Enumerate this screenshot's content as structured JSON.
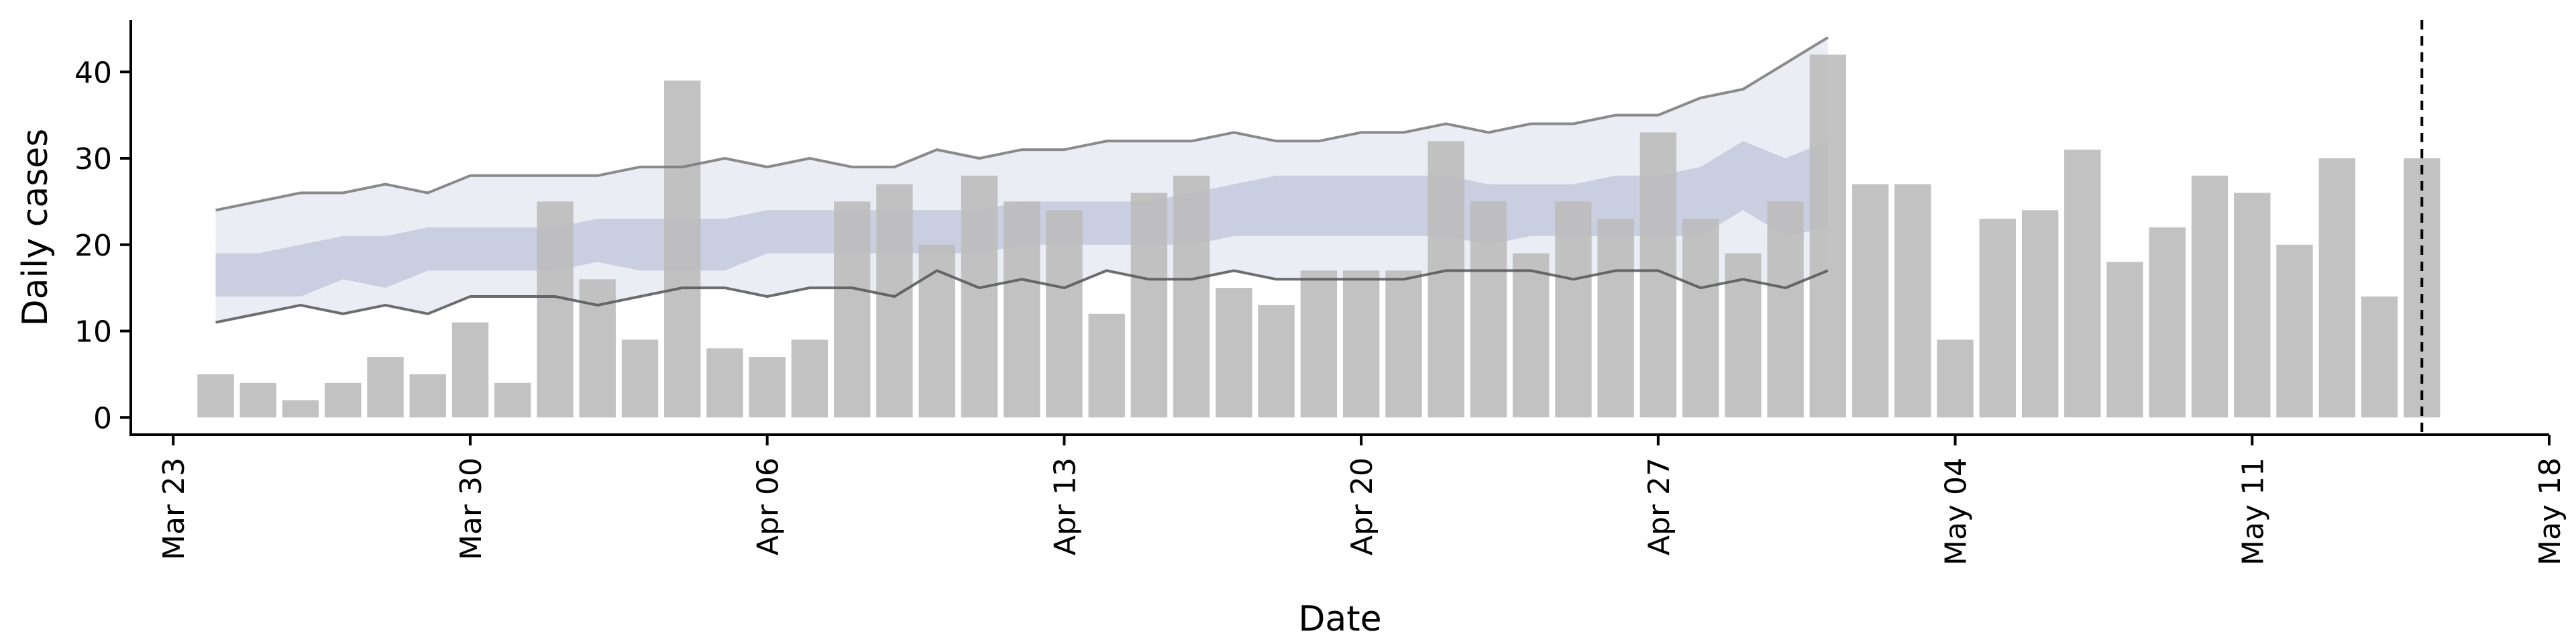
{
  "chart_data": {
    "type": "bar",
    "xlabel": "Date",
    "ylabel": "Daily cases",
    "ylim": [
      -2,
      46
    ],
    "xlim": [
      "2020-03-22",
      "2020-05-18"
    ],
    "grid": false,
    "yticks": [
      0,
      10,
      20,
      30,
      40
    ],
    "xticks": [
      {
        "date": "2020-03-23",
        "label": "Mar 23"
      },
      {
        "date": "2020-03-30",
        "label": "Mar 30"
      },
      {
        "date": "2020-04-06",
        "label": "Apr 06"
      },
      {
        "date": "2020-04-13",
        "label": "Apr 13"
      },
      {
        "date": "2020-04-20",
        "label": "Apr 20"
      },
      {
        "date": "2020-04-27",
        "label": "Apr 27"
      },
      {
        "date": "2020-05-04",
        "label": "May 04"
      },
      {
        "date": "2020-05-11",
        "label": "May 11"
      },
      {
        "date": "2020-05-18",
        "label": "May 18"
      }
    ],
    "bars": {
      "start_date": "2020-03-24",
      "color": "#bdbdbd",
      "values": [
        5,
        4,
        2,
        4,
        7,
        5,
        11,
        4,
        25,
        16,
        9,
        39,
        8,
        7,
        9,
        25,
        27,
        20,
        28,
        25,
        24,
        12,
        26,
        28,
        15,
        13,
        17,
        17,
        17,
        32,
        25,
        19,
        25,
        23,
        33,
        23,
        19,
        25,
        42,
        27,
        27,
        9,
        23,
        24,
        31,
        18,
        22,
        28,
        26,
        20,
        30,
        14,
        30
      ]
    },
    "forecast": {
      "start_date": "2020-03-24",
      "outer_color": "#e8eaf2",
      "inner_color": "#c5cbde",
      "line_color": "#777777",
      "outer_upper": [
        24,
        25,
        26,
        26,
        27,
        26,
        28,
        28,
        28,
        28,
        29,
        29,
        30,
        29,
        30,
        29,
        29,
        31,
        30,
        31,
        31,
        32,
        32,
        32,
        33,
        32,
        32,
        33,
        33,
        34,
        33,
        34,
        34,
        35,
        35,
        37,
        38,
        41,
        44
      ],
      "inner_upper": [
        19,
        19,
        20,
        21,
        21,
        22,
        22,
        22,
        22,
        23,
        23,
        23,
        23,
        24,
        24,
        24,
        24,
        24,
        24,
        25,
        25,
        25,
        25,
        26,
        27,
        28,
        28,
        28,
        28,
        28,
        27,
        27,
        27,
        28,
        28,
        29,
        32,
        30,
        32
      ],
      "inner_lower": [
        14,
        14,
        14,
        16,
        15,
        17,
        17,
        17,
        17,
        18,
        17,
        17,
        17,
        19,
        19,
        19,
        19,
        19,
        19,
        20,
        20,
        20,
        20,
        20,
        21,
        21,
        21,
        21,
        21,
        21,
        20,
        21,
        21,
        21,
        21,
        21,
        24,
        21,
        22
      ],
      "outer_lower": [
        11,
        12,
        13,
        12,
        13,
        12,
        14,
        14,
        14,
        13,
        14,
        15,
        15,
        14,
        15,
        15,
        14,
        17,
        15,
        16,
        15,
        17,
        16,
        16,
        17,
        16,
        16,
        16,
        16,
        17,
        17,
        17,
        16,
        17,
        17,
        15,
        16,
        15,
        17
      ]
    },
    "vline": {
      "date": "2020-05-15",
      "style": "dashed",
      "color": "#000000"
    }
  }
}
